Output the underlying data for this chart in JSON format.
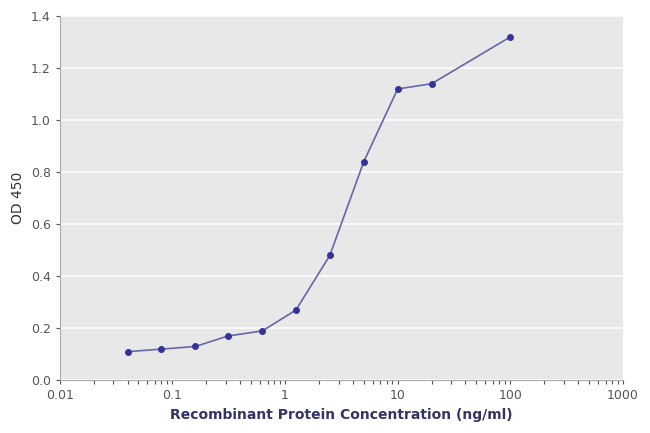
{
  "x": [
    0.04,
    0.08,
    0.16,
    0.31,
    0.63,
    1.25,
    2.5,
    5.0,
    10.0,
    20.0,
    100.0
  ],
  "y": [
    0.11,
    0.12,
    0.13,
    0.17,
    0.19,
    0.27,
    0.48,
    0.84,
    1.12,
    1.14,
    1.32
  ],
  "line_color": "#6666aa",
  "marker_color": "#333399",
  "marker_size": 4,
  "line_width": 1.2,
  "xlabel": "Recombinant Protein Concentration (ng/ml)",
  "ylabel": "OD 450",
  "xlim": [
    0.01,
    1000
  ],
  "ylim": [
    0,
    1.4
  ],
  "yticks": [
    0,
    0.2,
    0.4,
    0.6,
    0.8,
    1.0,
    1.2,
    1.4
  ],
  "bg_color": "#ffffff",
  "plot_bg_color": "#e8e8e8",
  "grid_color": "#ffffff",
  "xlabel_fontsize": 10,
  "ylabel_fontsize": 10,
  "tick_fontsize": 9,
  "xlabel_bold": true
}
